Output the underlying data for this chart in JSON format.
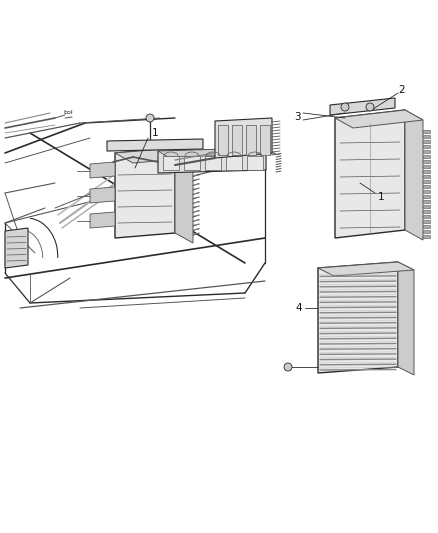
{
  "bg": "#ffffff",
  "lc": "#2a2a2a",
  "lc_light": "#888888",
  "lc_mid": "#555555",
  "fig_w": 4.38,
  "fig_h": 5.33,
  "dpi": 100
}
